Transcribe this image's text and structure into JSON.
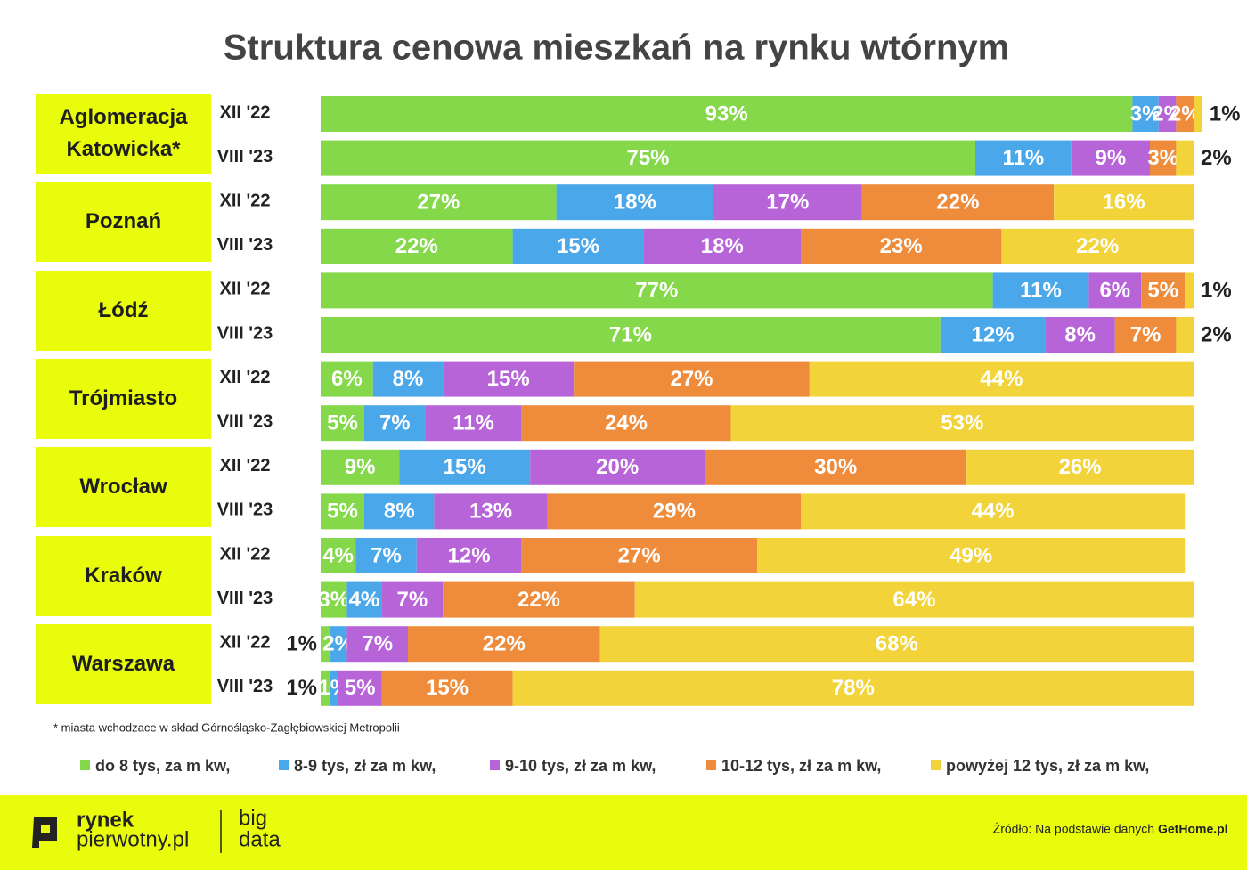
{
  "chart_data": {
    "type": "bar",
    "orientation": "horizontal",
    "stacked": true,
    "title": "Struktura cenowa mieszkań na rynku wtórnym",
    "groups": [
      "Aglomeracja Katowicka*",
      "Poznań",
      "Łódź",
      "Trójmiasto",
      "Wrocław",
      "Kraków",
      "Warszawa"
    ],
    "categories": [
      "XII '22",
      "VIII '23",
      "XII '22",
      "VIII '23",
      "XII '22",
      "VIII '23",
      "XII '22",
      "VIII '23",
      "XII '22",
      "VIII '23",
      "XII '22",
      "VIII '23",
      "XII '22",
      "VIII '23"
    ],
    "xlim": [
      0,
      100
    ],
    "series": [
      {
        "name": "do 8 tys, za m kw,",
        "color": "#84d84a",
        "values": [
          93,
          75,
          27,
          22,
          77,
          71,
          6,
          5,
          9,
          5,
          4,
          3,
          1,
          1
        ],
        "value_labels": [
          "93%",
          "75%",
          "27%",
          "22%",
          "77%",
          "71%",
          "6%",
          "5%",
          "9%",
          "5%",
          "4%",
          "3%",
          "1%",
          "1%"
        ]
      },
      {
        "name": "8-9 tys, zł za m kw,",
        "color": "#4aa8ea",
        "values": [
          3,
          11,
          18,
          15,
          11,
          12,
          8,
          7,
          15,
          8,
          7,
          4,
          2,
          1
        ],
        "value_labels": [
          "3%",
          "11%",
          "18%",
          "15%",
          "11%",
          "12%",
          "8%",
          "7%",
          "15%",
          "8%",
          "7%",
          "4%",
          "2%",
          "1%"
        ]
      },
      {
        "name": "9-10 tys, zł za m kw,",
        "color": "#b764d9",
        "values": [
          2,
          9,
          17,
          18,
          6,
          8,
          15,
          11,
          20,
          13,
          12,
          7,
          7,
          5
        ],
        "value_labels": [
          "2%",
          "9%",
          "17%",
          "18%",
          "6%",
          "8%",
          "15%",
          "11%",
          "20%",
          "13%",
          "12%",
          "7%",
          "7%",
          "5%"
        ]
      },
      {
        "name": "10-12 tys, zł za m kw,",
        "color": "#ef8c3c",
        "values": [
          2,
          3,
          22,
          23,
          5,
          7,
          27,
          24,
          30,
          29,
          27,
          22,
          22,
          15
        ],
        "value_labels": [
          "2%",
          "3%",
          "22%",
          "23%",
          "5%",
          "7%",
          "27%",
          "24%",
          "30%",
          "29%",
          "27%",
          "22%",
          "22%",
          "15%"
        ]
      },
      {
        "name": "powyżej 12 tys, zł za m kw,",
        "color": "#f2d43a",
        "values": [
          1,
          2,
          16,
          22,
          1,
          2,
          44,
          53,
          26,
          44,
          49,
          64,
          68,
          78
        ],
        "value_labels": [
          "1%",
          "2%",
          "16%",
          "22%",
          "1%",
          "2%",
          "44%",
          "53%",
          "26%",
          "44%",
          "49%",
          "64%",
          "68%",
          "78%"
        ]
      }
    ],
    "footnote": "* miasta wchodzace w skład Górnośląsko-Zagłębiowskiej Metropolii"
  },
  "footer": {
    "logo_line1": "rynek",
    "logo_line2": "pierwotny.pl",
    "logo_big": "big",
    "logo_data": "data",
    "source": "Źródło: Na podstawie danych",
    "source_site": "GetHome.pl"
  }
}
